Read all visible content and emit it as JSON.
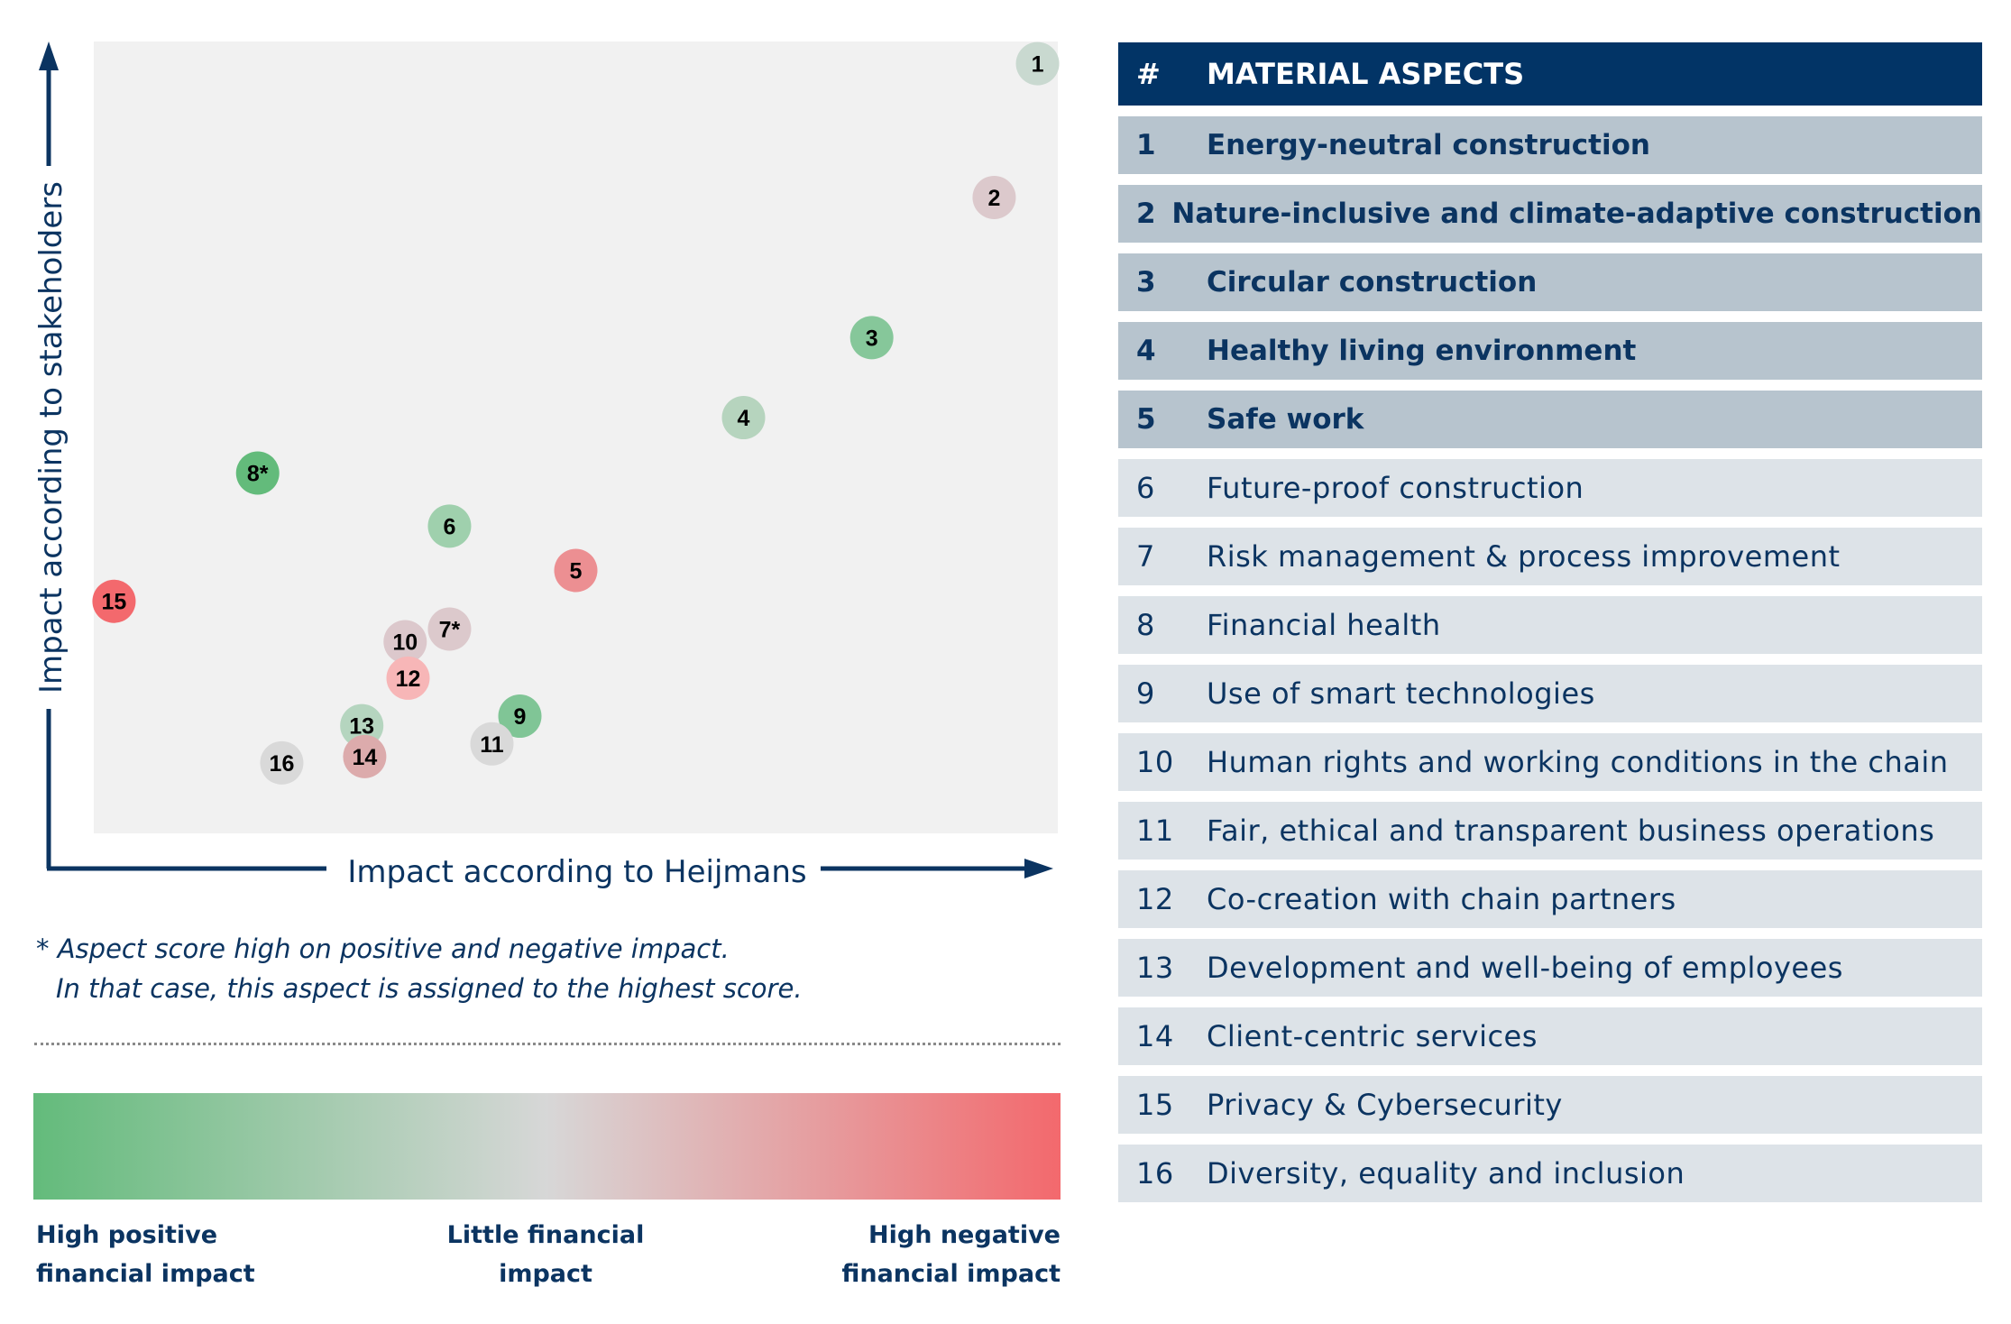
{
  "chart_data": {
    "type": "scatter",
    "title": "",
    "xlabel": "Impact according to Heijmans",
    "ylabel": "Impact according to stakeholders",
    "xlim": [
      0,
      100
    ],
    "ylim": [
      0,
      100
    ],
    "grid": false,
    "points": [
      {
        "id": "1",
        "label": "1",
        "x": 97.9,
        "y": 97.2,
        "color": "#c9d9d0"
      },
      {
        "id": "2",
        "label": "2",
        "x": 93.4,
        "y": 80.3,
        "color": "#dcc9cc"
      },
      {
        "id": "3",
        "label": "3",
        "x": 80.7,
        "y": 62.6,
        "color": "#86c79a"
      },
      {
        "id": "4",
        "label": "4",
        "x": 67.4,
        "y": 52.5,
        "color": "#b6d4be"
      },
      {
        "id": "5",
        "label": "5",
        "x": 50.0,
        "y": 33.2,
        "color": "#ec8f92"
      },
      {
        "id": "6",
        "label": "6",
        "x": 36.9,
        "y": 38.8,
        "color": "#9fd0ad"
      },
      {
        "id": "7",
        "label": "7*",
        "x": 36.9,
        "y": 25.8,
        "color": "#dcc9cc"
      },
      {
        "id": "8",
        "label": "8*",
        "x": 17.0,
        "y": 45.5,
        "color": "#63bb7b"
      },
      {
        "id": "9",
        "label": "9",
        "x": 44.2,
        "y": 14.8,
        "color": "#80c596"
      },
      {
        "id": "10",
        "label": "10",
        "x": 32.3,
        "y": 24.2,
        "color": "#dcc8cc"
      },
      {
        "id": "11",
        "label": "11",
        "x": 41.3,
        "y": 11.3,
        "color": "#d9d9d9"
      },
      {
        "id": "12",
        "label": "12",
        "x": 32.6,
        "y": 19.6,
        "color": "#f7b6b7"
      },
      {
        "id": "13",
        "label": "13",
        "x": 27.8,
        "y": 13.6,
        "color": "#b5d5bf"
      },
      {
        "id": "14",
        "label": "14",
        "x": 28.1,
        "y": 9.7,
        "color": "#dcabac"
      },
      {
        "id": "15",
        "label": "15",
        "x": 2.1,
        "y": 29.3,
        "color": "#f3696d"
      },
      {
        "id": "16",
        "label": "16",
        "x": 19.5,
        "y": 8.9,
        "color": "#d9d9d9"
      }
    ],
    "color_scale": {
      "stops": [
        "#63bb7b",
        "#d7d7d7",
        "#f3696d"
      ],
      "labels": {
        "left": "High positive\nfinancial impact",
        "middle": "Little financial\nimpact",
        "right": "High negative\nfinancial impact"
      }
    }
  },
  "footnote": {
    "line1": "* Aspect score high on positive and negative impact.",
    "line2": "In that case, this aspect is assigned to the highest score."
  },
  "table": {
    "header": {
      "num": "#",
      "label": "MATERIAL ASPECTS"
    },
    "rows": [
      {
        "num": "1",
        "label": "Energy-neutral construction",
        "tier": "strong"
      },
      {
        "num": "2",
        "label": "Nature-inclusive and climate-adaptive construction",
        "tier": "strong"
      },
      {
        "num": "3",
        "label": "Circular construction",
        "tier": "strong"
      },
      {
        "num": "4",
        "label": "Healthy living environment",
        "tier": "strong"
      },
      {
        "num": "5",
        "label": "Safe work",
        "tier": "strong"
      },
      {
        "num": "6",
        "label": "Future-proof construction",
        "tier": "light"
      },
      {
        "num": "7",
        "label": "Risk management & process improvement",
        "tier": "light"
      },
      {
        "num": "8",
        "label": "Financial health",
        "tier": "light"
      },
      {
        "num": "9",
        "label": "Use of smart technologies",
        "tier": "light"
      },
      {
        "num": "10",
        "label": "Human rights and working conditions in the chain",
        "tier": "light"
      },
      {
        "num": "11",
        "label": "Fair, ethical and transparent business operations",
        "tier": "light"
      },
      {
        "num": "12",
        "label": "Co-creation with chain partners",
        "tier": "light"
      },
      {
        "num": "13",
        "label": "Development and well-being of employees",
        "tier": "light"
      },
      {
        "num": "14",
        "label": "Client-centric services",
        "tier": "light"
      },
      {
        "num": "15",
        "label": "Privacy & Cybersecurity",
        "tier": "light"
      },
      {
        "num": "16",
        "label": "Diversity, equality and inclusion",
        "tier": "light"
      }
    ]
  }
}
